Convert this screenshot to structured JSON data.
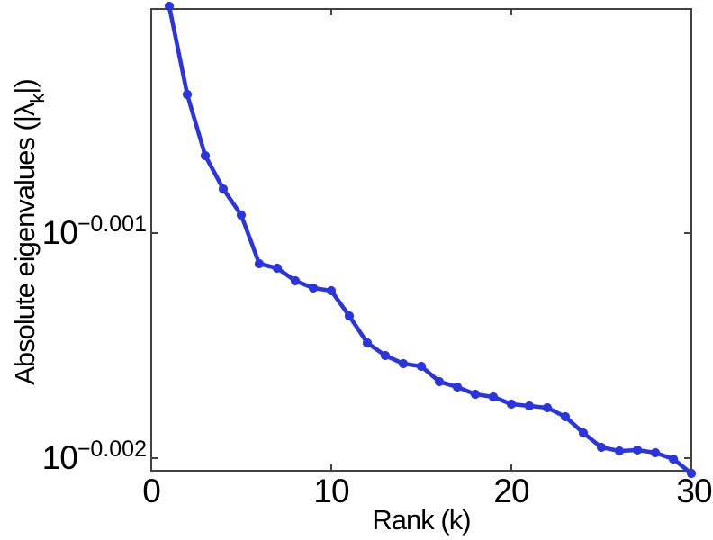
{
  "figure": {
    "background": "#ffffff",
    "line_color": "#2b35de",
    "axis_color": "#424242",
    "text_color": "#000000"
  },
  "chart_data": {
    "type": "line",
    "title": "",
    "xlabel": "Rank (k)",
    "ylabel_parts": {
      "prefix": "Absolute eigenvalues (|λ",
      "sub": "k",
      "suffix": "|)"
    },
    "x_ticks": [
      {
        "label": "0",
        "value": 0
      },
      {
        "label": "10",
        "value": 10
      },
      {
        "label": "20",
        "value": 20
      },
      {
        "label": "30",
        "value": 30
      }
    ],
    "y_ticks": [
      {
        "base": "10",
        "exp": "−0.001",
        "value_log10": -0.001
      },
      {
        "base": "10",
        "exp": "−0.002",
        "value_log10": -0.002
      }
    ],
    "xlim": [
      0,
      30
    ],
    "ylim_log10": [
      -0.002056,
      -4e-06
    ],
    "y_scale": "log10",
    "grid": false,
    "legend": null,
    "series": [
      {
        "name": "absolute-eigenvalues",
        "marker": "dot",
        "x": [
          1,
          2,
          3,
          4,
          5,
          6,
          7,
          8,
          9,
          10,
          11,
          12,
          13,
          14,
          15,
          16,
          17,
          18,
          19,
          20,
          21,
          22,
          23,
          24,
          25,
          26,
          27,
          28,
          29,
          30
        ],
        "y_log10": [
          8e-06,
          -0.000384,
          -0.000656,
          -0.000804,
          -0.00092,
          -0.001136,
          -0.001156,
          -0.001212,
          -0.001244,
          -0.001256,
          -0.001368,
          -0.001488,
          -0.001544,
          -0.00158,
          -0.001592,
          -0.00166,
          -0.001684,
          -0.001716,
          -0.001728,
          -0.00176,
          -0.001768,
          -0.001776,
          -0.001816,
          -0.001888,
          -0.001952,
          -0.001968,
          -0.001964,
          -0.001976,
          -0.002004,
          -0.002068
        ]
      }
    ]
  }
}
